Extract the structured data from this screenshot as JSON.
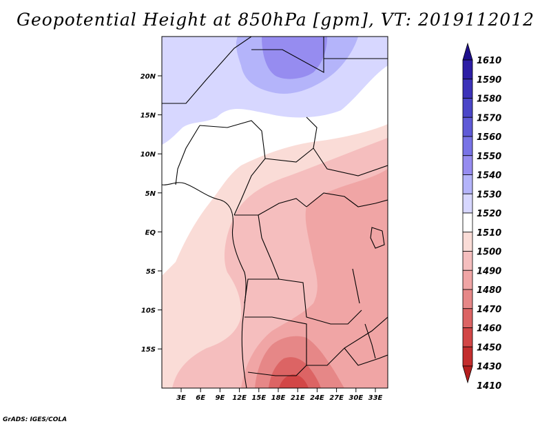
{
  "title": "Geopotential Height at 850hPa [gpm], VT: 2019112012",
  "credit": "GrADS: IGES/COLA",
  "map": {
    "lat_ticks": [
      "20N",
      "15N",
      "10N",
      "5N",
      "EQ",
      "5S",
      "10S",
      "15S"
    ],
    "lon_ticks": [
      "3E",
      "6E",
      "9E",
      "12E",
      "15E",
      "18E",
      "21E",
      "24E",
      "27E",
      "30E",
      "33E"
    ]
  },
  "colorbar": {
    "levels": [
      "1610",
      "1590",
      "1580",
      "1570",
      "1560",
      "1550",
      "1540",
      "1530",
      "1520",
      "1510",
      "1500",
      "1490",
      "1480",
      "1470",
      "1460",
      "1450",
      "1430",
      "1410"
    ],
    "colors": [
      "#1e0f8c",
      "#2d1ea5",
      "#3c32b9",
      "#4b46c8",
      "#5f5ad7",
      "#7873e6",
      "#968cf0",
      "#b4b4fa",
      "#d7d7ff",
      "#ffffff",
      "#fadcd7",
      "#f5bebe",
      "#f0a5a5",
      "#e68787",
      "#dc6464",
      "#d24646",
      "#c32d2d",
      "#b41e1e"
    ]
  }
}
